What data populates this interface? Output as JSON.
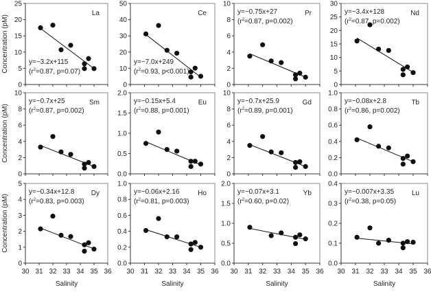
{
  "chart_data": {
    "type": "scatter",
    "xlabel": "Salinity",
    "ylabel": "Concentration (pM)",
    "xlim": [
      30,
      36
    ],
    "xticks": [
      30,
      31,
      32,
      33,
      34,
      35,
      36
    ],
    "grid": false,
    "marker_color": "#111111",
    "line_color": "#111111",
    "panels": [
      {
        "element": "La",
        "equation": "y=−3.2x+115",
        "stats": "=0.87, p=0.07)",
        "annotation_position": "bottom-left",
        "ylim": [
          0,
          25
        ],
        "yticks": [
          0,
          5,
          10,
          15,
          20,
          25
        ],
        "x": [
          31.1,
          32.0,
          32.6,
          33.3,
          34.3,
          34.3,
          34.6,
          35.0
        ],
        "y": [
          17.5,
          18.3,
          10.7,
          12.1,
          6.4,
          4.9,
          8.0,
          4.9
        ],
        "fit_line": [
          [
            31.1,
            17.3
          ],
          [
            35.0,
            4.9
          ]
        ]
      },
      {
        "element": "Ce",
        "equation": "y=−7.0x+249",
        "stats": "=0.93, p<0.001)",
        "annotation_position": "bottom-left",
        "ylim": [
          0,
          50
        ],
        "yticks": [
          0,
          10,
          20,
          30,
          40,
          50
        ],
        "x": [
          31.1,
          32.0,
          32.6,
          33.3,
          34.3,
          34.3,
          34.6,
          35.0
        ],
        "y": [
          31.2,
          36.4,
          21.1,
          19.3,
          7.8,
          4.6,
          10.1,
          5.1
        ],
        "fit_line": [
          [
            31.1,
            30.8
          ],
          [
            35.0,
            4.5
          ]
        ]
      },
      {
        "element": "Pr",
        "equation": "y=−0.75x+27",
        "stats": "=0.87, p=0.002)",
        "annotation_position": "top-left",
        "ylim": [
          0,
          10
        ],
        "yticks": [
          0,
          2,
          4,
          6,
          8,
          10
        ],
        "x": [
          31.1,
          32.0,
          32.6,
          33.3,
          34.3,
          34.3,
          34.6,
          35.0
        ],
        "y": [
          3.5,
          4.9,
          2.9,
          2.7,
          1.2,
          0.7,
          1.4,
          0.9
        ],
        "fit_line": [
          [
            31.1,
            3.8
          ],
          [
            35.0,
            0.9
          ]
        ]
      },
      {
        "element": "Nd",
        "equation": "y=−3.4x+128",
        "stats": "=0.87, p=0.002)",
        "annotation_position": "top-left",
        "ylim": [
          0,
          30
        ],
        "yticks": [
          0,
          5,
          10,
          15,
          20,
          25,
          30
        ],
        "x": [
          31.1,
          32.0,
          32.6,
          33.3,
          34.3,
          34.3,
          34.6,
          35.0
        ],
        "y": [
          16.1,
          22.1,
          13.1,
          12.6,
          5.6,
          3.6,
          6.5,
          4.4
        ],
        "fit_line": [
          [
            31.1,
            17.2
          ],
          [
            35.0,
            4.5
          ]
        ]
      },
      {
        "element": "Sm",
        "equation": "y=−0.7x+25",
        "stats": "=0.87, p=0.002)",
        "annotation_position": "top-left",
        "ylim": [
          0,
          10
        ],
        "yticks": [
          0,
          2,
          4,
          6,
          8,
          10
        ],
        "x": [
          31.1,
          32.0,
          32.6,
          33.3,
          34.3,
          34.3,
          34.6,
          35.0
        ],
        "y": [
          3.3,
          4.6,
          2.7,
          2.4,
          1.2,
          0.7,
          1.4,
          0.9
        ],
        "fit_line": [
          [
            31.1,
            3.5
          ],
          [
            35.0,
            0.9
          ]
        ]
      },
      {
        "element": "Eu",
        "equation": "y=−0.15x+5.4",
        "stats": "=0.88, p=0.001)",
        "annotation_position": "top-left",
        "ylim": [
          0,
          2
        ],
        "yticks": [
          "0.0",
          "0.5",
          "1.0",
          "1.5",
          "2.0"
        ],
        "x": [
          31.1,
          32.0,
          32.6,
          33.3,
          34.3,
          34.3,
          34.6,
          35.0
        ],
        "y": [
          0.75,
          1.03,
          0.6,
          0.56,
          0.31,
          0.18,
          0.31,
          0.24
        ],
        "fit_line": [
          [
            31.1,
            0.79
          ],
          [
            35.0,
            0.22
          ]
        ]
      },
      {
        "element": "Gd",
        "equation": "y=−0.7x+25.9",
        "stats": "=0.89, p=0.001)",
        "annotation_position": "top-left",
        "ylim": [
          0,
          10
        ],
        "yticks": [
          0,
          2,
          4,
          6,
          8,
          10
        ],
        "x": [
          31.1,
          32.0,
          32.6,
          33.3,
          34.3,
          34.3,
          34.6,
          35.0
        ],
        "y": [
          3.5,
          4.6,
          2.7,
          2.6,
          1.4,
          0.8,
          1.5,
          0.9
        ],
        "fit_line": [
          [
            31.1,
            3.6
          ],
          [
            35.0,
            0.9
          ]
        ]
      },
      {
        "element": "Tb",
        "equation": "y=−0.08x+2.8",
        "stats": "=0.86, p=0.002)",
        "annotation_position": "top-left",
        "ylim": [
          0,
          1
        ],
        "yticks": [
          "0.0",
          "0.2",
          "0.4",
          "0.6",
          "0.8",
          "1.0"
        ],
        "x": [
          31.1,
          32.0,
          32.6,
          33.3,
          34.3,
          34.3,
          34.6,
          35.0
        ],
        "y": [
          0.42,
          0.58,
          0.34,
          0.32,
          0.19,
          0.12,
          0.22,
          0.15
        ],
        "fit_line": [
          [
            31.1,
            0.44
          ],
          [
            35.0,
            0.15
          ]
        ]
      },
      {
        "element": "Dy",
        "equation": "y=−0.34x+12.8",
        "stats": "=0.83, p=0.003)",
        "annotation_position": "top-left",
        "ylim": [
          0,
          5
        ],
        "yticks": [
          0,
          1,
          2,
          3,
          4,
          5
        ],
        "x": [
          31.1,
          32.0,
          32.6,
          33.3,
          34.3,
          34.3,
          34.6,
          35.0
        ],
        "y": [
          2.15,
          2.95,
          1.75,
          1.67,
          1.15,
          0.75,
          1.28,
          0.88
        ],
        "fit_line": [
          [
            31.1,
            2.2
          ],
          [
            35.0,
            0.9
          ]
        ]
      },
      {
        "element": "Ho",
        "equation": "y=−0.06x+2.16",
        "stats": "=0.81, p=0.003)",
        "annotation_position": "top-left",
        "ylim": [
          0,
          1
        ],
        "yticks": [
          "0.0",
          "0.2",
          "0.4",
          "0.6",
          "0.8",
          "1.0"
        ],
        "x": [
          31.1,
          32.0,
          32.6,
          33.3,
          34.3,
          34.3,
          34.6,
          35.0
        ],
        "y": [
          0.41,
          0.56,
          0.33,
          0.33,
          0.24,
          0.17,
          0.26,
          0.2
        ],
        "fit_line": [
          [
            31.1,
            0.42
          ],
          [
            35.0,
            0.2
          ]
        ]
      },
      {
        "element": "Yb",
        "equation": "y=−0.07x+3.1",
        "stats": "=0.60, p=0.02)",
        "annotation_position": "top-left",
        "ylim": [
          0,
          2
        ],
        "yticks": [
          "0.0",
          "0.5",
          "1.0",
          "1.5",
          "2.0"
        ],
        "x": [
          31.1,
          32.6,
          33.3,
          34.3,
          34.3,
          34.6,
          35.0
        ],
        "y": [
          0.9,
          0.69,
          0.76,
          0.65,
          0.49,
          0.71,
          0.61
        ],
        "fit_line": [
          [
            31.1,
            0.87
          ],
          [
            35.0,
            0.6
          ]
        ]
      },
      {
        "element": "Lu",
        "equation": "y=−0.007x+3.35",
        "stats": "=0.38, p=0.05)",
        "annotation_position": "top-left",
        "ylim": [
          0,
          0.4
        ],
        "yticks": [
          "0.0",
          "0.1",
          "0.2",
          "0.3",
          "0.4"
        ],
        "x": [
          31.1,
          32.0,
          32.6,
          33.3,
          34.3,
          34.3,
          34.6,
          35.0
        ],
        "y": [
          0.13,
          0.177,
          0.1,
          0.115,
          0.1,
          0.077,
          0.108,
          0.105
        ],
        "fit_line": [
          [
            31.1,
            0.125
          ],
          [
            35.0,
            0.097
          ]
        ]
      }
    ]
  }
}
